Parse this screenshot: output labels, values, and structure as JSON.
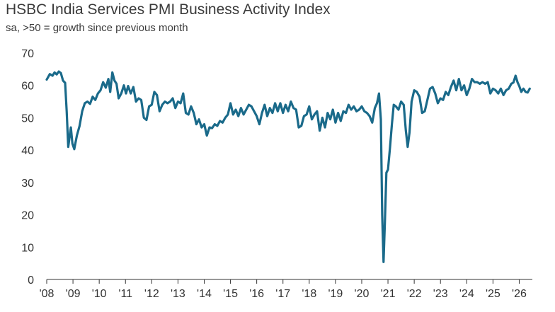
{
  "chart_data": {
    "type": "line",
    "title": "HSBC India Services PMI Business Activity Index",
    "subtitle": "sa, >50 = growth since previous month",
    "xlabel": "",
    "ylabel": "",
    "ylim": [
      0,
      70
    ],
    "xlim": [
      2008.0,
      2026.5
    ],
    "yticks": [
      0,
      10,
      20,
      30,
      40,
      50,
      60,
      70
    ],
    "xticks": [
      {
        "value": 2008,
        "label": "'08"
      },
      {
        "value": 2009,
        "label": "'09"
      },
      {
        "value": 2010,
        "label": "'10"
      },
      {
        "value": 2011,
        "label": "'11"
      },
      {
        "value": 2012,
        "label": "'12"
      },
      {
        "value": 2013,
        "label": "'13"
      },
      {
        "value": 2014,
        "label": "'14"
      },
      {
        "value": 2015,
        "label": "'15"
      },
      {
        "value": 2016,
        "label": "'16"
      },
      {
        "value": 2017,
        "label": "'17"
      },
      {
        "value": 2018,
        "label": "'18"
      },
      {
        "value": 2019,
        "label": "'19"
      },
      {
        "value": 2020,
        "label": "'20"
      },
      {
        "value": 2021,
        "label": "'21"
      },
      {
        "value": 2022,
        "label": "'22"
      },
      {
        "value": 2023,
        "label": "'23"
      },
      {
        "value": 2024,
        "label": "'24"
      },
      {
        "value": 2025,
        "label": "'25"
      },
      {
        "value": 2026,
        "label": "'26"
      }
    ],
    "grid": false,
    "line_color": "#1a6a8a",
    "series": [
      {
        "values": [
          [
            2008.0,
            61.8
          ],
          [
            2008.12,
            63.5
          ],
          [
            2008.22,
            63.0
          ],
          [
            2008.3,
            64.0
          ],
          [
            2008.38,
            63.4
          ],
          [
            2008.46,
            64.3
          ],
          [
            2008.54,
            63.8
          ],
          [
            2008.62,
            61.5
          ],
          [
            2008.7,
            60.8
          ],
          [
            2008.76,
            52.0
          ],
          [
            2008.82,
            41.0
          ],
          [
            2008.92,
            47.0
          ],
          [
            2008.98,
            42.0
          ],
          [
            2009.05,
            40.3
          ],
          [
            2009.15,
            44.5
          ],
          [
            2009.25,
            47.5
          ],
          [
            2009.35,
            52.0
          ],
          [
            2009.45,
            54.5
          ],
          [
            2009.55,
            55.0
          ],
          [
            2009.65,
            54.3
          ],
          [
            2009.75,
            56.5
          ],
          [
            2009.85,
            55.5
          ],
          [
            2009.95,
            57.5
          ],
          [
            2010.05,
            58.5
          ],
          [
            2010.15,
            61.0
          ],
          [
            2010.25,
            59.3
          ],
          [
            2010.35,
            62.0
          ],
          [
            2010.42,
            58.0
          ],
          [
            2010.5,
            64.0
          ],
          [
            2010.58,
            61.5
          ],
          [
            2010.66,
            60.5
          ],
          [
            2010.74,
            56.0
          ],
          [
            2010.84,
            57.5
          ],
          [
            2010.94,
            60.0
          ],
          [
            2011.02,
            57.5
          ],
          [
            2011.1,
            59.8
          ],
          [
            2011.2,
            57.5
          ],
          [
            2011.3,
            59.5
          ],
          [
            2011.4,
            55.0
          ],
          [
            2011.5,
            56.0
          ],
          [
            2011.6,
            55.5
          ],
          [
            2011.7,
            50.0
          ],
          [
            2011.8,
            49.3
          ],
          [
            2011.9,
            53.5
          ],
          [
            2012.0,
            54.0
          ],
          [
            2012.1,
            58.0
          ],
          [
            2012.2,
            57.0
          ],
          [
            2012.3,
            52.0
          ],
          [
            2012.4,
            54.0
          ],
          [
            2012.5,
            55.0
          ],
          [
            2012.6,
            54.5
          ],
          [
            2012.7,
            55.0
          ],
          [
            2012.8,
            56.0
          ],
          [
            2012.9,
            53.0
          ],
          [
            2013.0,
            55.0
          ],
          [
            2013.1,
            54.5
          ],
          [
            2013.2,
            57.5
          ],
          [
            2013.3,
            51.5
          ],
          [
            2013.4,
            51.0
          ],
          [
            2013.5,
            53.5
          ],
          [
            2013.6,
            51.5
          ],
          [
            2013.7,
            48.0
          ],
          [
            2013.8,
            49.5
          ],
          [
            2013.9,
            47.0
          ],
          [
            2014.0,
            48.0
          ],
          [
            2014.1,
            44.5
          ],
          [
            2014.2,
            47.0
          ],
          [
            2014.3,
            46.8
          ],
          [
            2014.4,
            48.0
          ],
          [
            2014.5,
            47.5
          ],
          [
            2014.6,
            49.0
          ],
          [
            2014.7,
            48.5
          ],
          [
            2014.8,
            50.0
          ],
          [
            2014.9,
            51.0
          ],
          [
            2015.0,
            54.5
          ],
          [
            2015.1,
            51.0
          ],
          [
            2015.2,
            52.5
          ],
          [
            2015.3,
            50.5
          ],
          [
            2015.4,
            53.0
          ],
          [
            2015.5,
            51.0
          ],
          [
            2015.6,
            52.5
          ],
          [
            2015.7,
            54.0
          ],
          [
            2015.8,
            53.5
          ],
          [
            2015.9,
            52.0
          ],
          [
            2016.0,
            50.5
          ],
          [
            2016.1,
            48.0
          ],
          [
            2016.2,
            51.5
          ],
          [
            2016.3,
            54.0
          ],
          [
            2016.4,
            50.5
          ],
          [
            2016.5,
            53.0
          ],
          [
            2016.6,
            51.5
          ],
          [
            2016.7,
            54.5
          ],
          [
            2016.8,
            52.0
          ],
          [
            2016.9,
            54.5
          ],
          [
            2017.0,
            51.5
          ],
          [
            2017.1,
            54.0
          ],
          [
            2017.2,
            52.0
          ],
          [
            2017.3,
            55.0
          ],
          [
            2017.4,
            53.0
          ],
          [
            2017.5,
            52.5
          ],
          [
            2017.6,
            47.0
          ],
          [
            2017.7,
            47.5
          ],
          [
            2017.8,
            50.5
          ],
          [
            2017.9,
            51.0
          ],
          [
            2018.0,
            53.5
          ],
          [
            2018.1,
            49.5
          ],
          [
            2018.2,
            51.0
          ],
          [
            2018.3,
            52.0
          ],
          [
            2018.4,
            46.0
          ],
          [
            2018.5,
            50.0
          ],
          [
            2018.6,
            47.0
          ],
          [
            2018.7,
            51.5
          ],
          [
            2018.8,
            49.5
          ],
          [
            2018.9,
            52.5
          ],
          [
            2019.0,
            48.5
          ],
          [
            2019.1,
            51.5
          ],
          [
            2019.2,
            49.0
          ],
          [
            2019.3,
            52.0
          ],
          [
            2019.4,
            51.5
          ],
          [
            2019.5,
            54.0
          ],
          [
            2019.6,
            52.5
          ],
          [
            2019.7,
            53.5
          ],
          [
            2019.8,
            52.0
          ],
          [
            2019.9,
            52.5
          ],
          [
            2020.0,
            53.5
          ],
          [
            2020.1,
            52.0
          ],
          [
            2020.2,
            51.5
          ],
          [
            2020.3,
            50.5
          ],
          [
            2020.4,
            48.5
          ],
          [
            2020.5,
            53.0
          ],
          [
            2020.58,
            54.5
          ],
          [
            2020.66,
            57.5
          ],
          [
            2020.73,
            49.5
          ],
          [
            2020.78,
            20.0
          ],
          [
            2020.83,
            5.4
          ],
          [
            2020.88,
            17.0
          ],
          [
            2020.94,
            33.0
          ],
          [
            2021.0,
            34.0
          ],
          [
            2021.08,
            41.0
          ],
          [
            2021.15,
            48.0
          ],
          [
            2021.22,
            54.0
          ],
          [
            2021.3,
            53.5
          ],
          [
            2021.4,
            52.5
          ],
          [
            2021.5,
            55.0
          ],
          [
            2021.6,
            54.0
          ],
          [
            2021.68,
            46.0
          ],
          [
            2021.75,
            41.0
          ],
          [
            2021.82,
            45.5
          ],
          [
            2021.9,
            55.0
          ],
          [
            2022.0,
            58.5
          ],
          [
            2022.1,
            58.0
          ],
          [
            2022.2,
            56.5
          ],
          [
            2022.3,
            51.5
          ],
          [
            2022.4,
            52.0
          ],
          [
            2022.5,
            55.5
          ],
          [
            2022.6,
            59.0
          ],
          [
            2022.7,
            59.5
          ],
          [
            2022.8,
            57.5
          ],
          [
            2022.9,
            54.5
          ],
          [
            2023.0,
            56.0
          ],
          [
            2023.1,
            55.5
          ],
          [
            2023.2,
            58.0
          ],
          [
            2023.3,
            57.0
          ],
          [
            2023.4,
            59.5
          ],
          [
            2023.5,
            61.5
          ],
          [
            2023.6,
            58.5
          ],
          [
            2023.7,
            62.0
          ],
          [
            2023.8,
            58.5
          ],
          [
            2023.9,
            60.0
          ],
          [
            2024.0,
            57.0
          ],
          [
            2024.1,
            59.0
          ],
          [
            2024.2,
            62.0
          ],
          [
            2024.3,
            61.0
          ],
          [
            2024.4,
            61.0
          ],
          [
            2024.5,
            60.5
          ],
          [
            2024.6,
            61.0
          ],
          [
            2024.7,
            60.5
          ],
          [
            2024.8,
            61.0
          ],
          [
            2024.9,
            57.5
          ],
          [
            2025.0,
            59.0
          ],
          [
            2025.1,
            58.5
          ],
          [
            2025.2,
            57.5
          ],
          [
            2025.3,
            59.0
          ],
          [
            2025.4,
            57.0
          ],
          [
            2025.5,
            58.5
          ],
          [
            2025.6,
            59.0
          ],
          [
            2025.7,
            60.5
          ],
          [
            2025.78,
            60.9
          ],
          [
            2025.86,
            63.0
          ],
          [
            2025.94,
            60.9
          ],
          [
            2026.0,
            59.8
          ],
          [
            2026.08,
            58.0
          ],
          [
            2026.16,
            59.0
          ],
          [
            2026.24,
            58.0
          ],
          [
            2026.32,
            57.8
          ],
          [
            2026.4,
            59.0
          ]
        ]
      }
    ]
  }
}
